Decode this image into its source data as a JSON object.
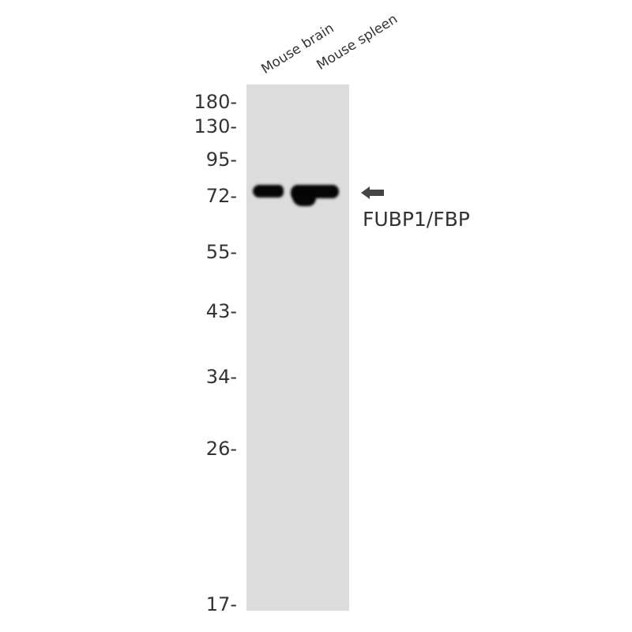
{
  "lanes": [
    "Mouse brain",
    "Mouse spleen"
  ],
  "markers": [
    {
      "label": "180-",
      "kda": 180
    },
    {
      "label": "130-",
      "kda": 130
    },
    {
      "label": "95-",
      "kda": 95
    },
    {
      "label": "72-",
      "kda": 72
    },
    {
      "label": "55-",
      "kda": 55
    },
    {
      "label": "43-",
      "kda": 43
    },
    {
      "label": "34-",
      "kda": 34
    },
    {
      "label": "26-",
      "kda": 26
    },
    {
      "label": "17-",
      "kda": 17
    }
  ],
  "target": {
    "label": "FUBP1/FBP",
    "icon": "arrow-left-icon"
  },
  "colors": {
    "membrane": "#dcdcdc",
    "band": "#050505",
    "text": "#333333"
  }
}
